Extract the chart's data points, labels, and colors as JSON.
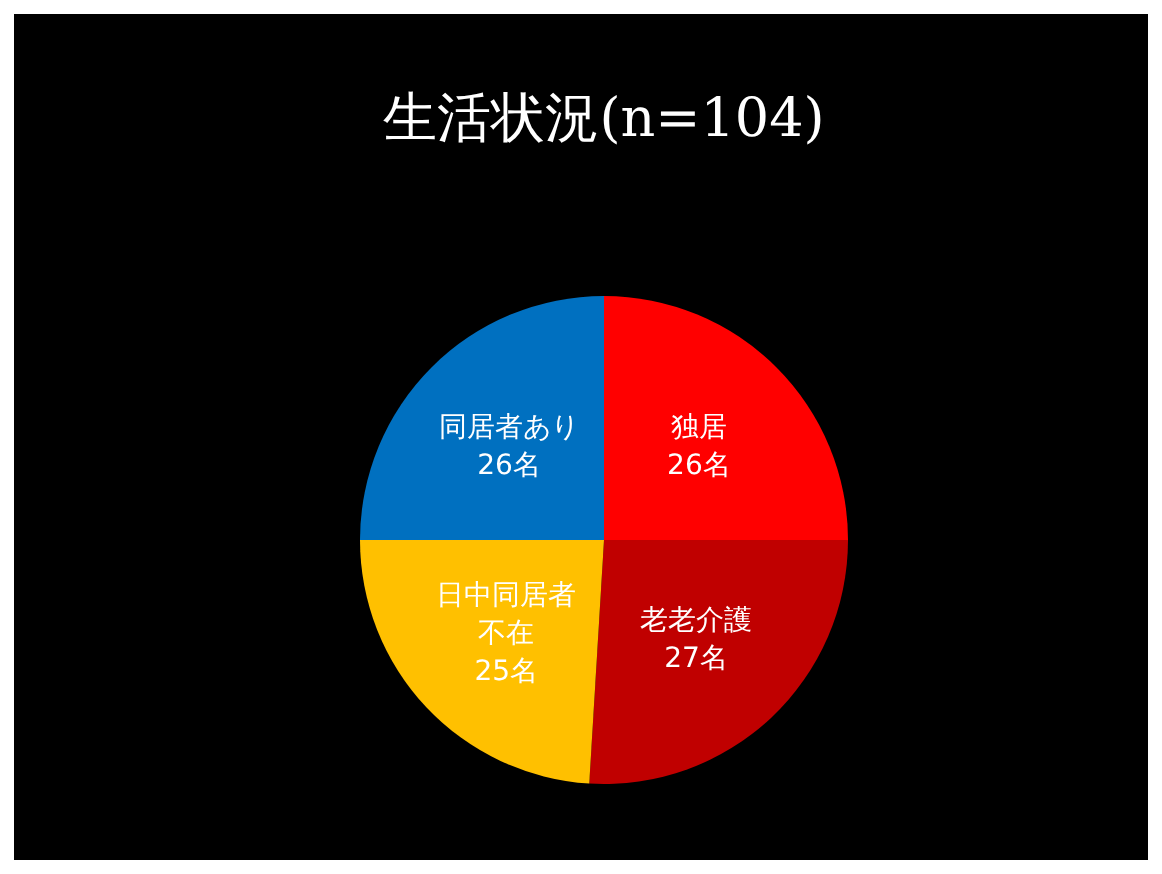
{
  "chart_data": {
    "type": "pie",
    "title": "生活状況(n=104)",
    "categories": [
      "独居",
      "老老介護",
      "日中同居者不在",
      "同居者あり"
    ],
    "values": [
      26,
      27,
      25,
      26
    ],
    "colors": [
      "#ff0000",
      "#c00000",
      "#ffc000",
      "#0070c0"
    ],
    "value_labels": [
      "26名",
      "27名",
      "25名",
      "26名"
    ]
  }
}
